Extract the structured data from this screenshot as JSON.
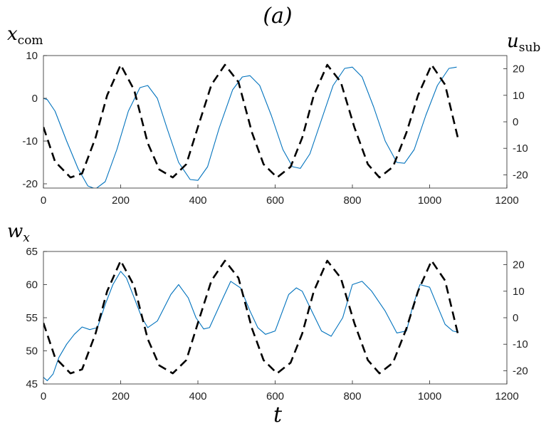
{
  "figure_label": "(a)",
  "xlabel": "t",
  "chart_data": [
    {
      "type": "line",
      "left_axis": {
        "label_main": "x",
        "label_sub": "com",
        "ylim": [
          -21,
          10
        ],
        "ticks": [
          -20,
          -10,
          0,
          10
        ]
      },
      "right_axis": {
        "label_main": "u",
        "label_sub": "sub",
        "ylim": [
          -25,
          25
        ],
        "ticks": [
          -20,
          -10,
          0,
          10,
          20
        ]
      },
      "xlim": [
        0,
        1200
      ],
      "xticks": [
        0,
        200,
        400,
        600,
        800,
        1000,
        1200
      ],
      "series": [
        {
          "axis": "left",
          "style": "solid",
          "color": "#0072BD",
          "x": [
            0,
            10,
            30,
            60,
            90,
            115,
            135,
            160,
            190,
            220,
            250,
            270,
            295,
            320,
            350,
            380,
            400,
            425,
            455,
            490,
            515,
            535,
            560,
            590,
            620,
            645,
            665,
            690,
            720,
            750,
            780,
            800,
            825,
            855,
            885,
            915,
            935,
            960,
            990,
            1020,
            1050,
            1070
          ],
          "y": [
            0,
            -0.3,
            -3,
            -10,
            -16.5,
            -20.5,
            -21.2,
            -19.5,
            -12,
            -3,
            2.5,
            3,
            0,
            -7,
            -15,
            -19,
            -19.2,
            -16,
            -7,
            2,
            5,
            5.3,
            3,
            -4,
            -12,
            -16,
            -16.4,
            -13,
            -5,
            3,
            7,
            7.3,
            5,
            -2,
            -10,
            -15,
            -15.2,
            -12,
            -4,
            3,
            7,
            7.3
          ]
        },
        {
          "axis": "right",
          "style": "dashed",
          "color": "#000000",
          "x": [
            0,
            30,
            70,
            100,
            135,
            165,
            200,
            235,
            270,
            300,
            335,
            370,
            400,
            435,
            470,
            505,
            540,
            570,
            605,
            640,
            670,
            700,
            735,
            770,
            805,
            840,
            870,
            905,
            940,
            970,
            1005,
            1040,
            1073
          ],
          "y": [
            -2,
            -15,
            -21,
            -19.5,
            -6,
            10,
            21.5,
            12,
            -8,
            -18,
            -21,
            -16,
            -2,
            14,
            21.5,
            15,
            -4,
            -16,
            -21,
            -17,
            -6,
            10,
            21.5,
            15,
            -2,
            -16,
            -21,
            -17,
            -4,
            10,
            21.5,
            14,
            -6
          ]
        }
      ]
    },
    {
      "type": "line",
      "left_axis": {
        "label_main": "w",
        "label_sub": "x",
        "ylim": [
          45,
          65
        ],
        "ticks": [
          45,
          50,
          55,
          60,
          65
        ]
      },
      "right_axis": {
        "ylim": [
          -25,
          25
        ],
        "ticks": [
          -20,
          -10,
          0,
          10,
          20
        ]
      },
      "xlim": [
        0,
        1200
      ],
      "xticks": [
        0,
        200,
        400,
        600,
        800,
        1000,
        1200
      ],
      "series": [
        {
          "axis": "left",
          "style": "solid",
          "color": "#0072BD",
          "x": [
            0,
            10,
            25,
            40,
            60,
            80,
            100,
            120,
            140,
            160,
            180,
            200,
            215,
            235,
            255,
            270,
            295,
            330,
            350,
            375,
            395,
            415,
            430,
            465,
            485,
            510,
            535,
            555,
            575,
            600,
            635,
            655,
            670,
            695,
            720,
            745,
            775,
            800,
            825,
            850,
            885,
            915,
            940,
            955,
            975,
            1000,
            1015,
            1040,
            1060,
            1075
          ],
          "y": [
            46,
            45.5,
            46.5,
            49,
            51,
            52.5,
            53.6,
            53.2,
            53.5,
            57,
            60,
            62,
            61,
            58,
            55,
            53.5,
            54.5,
            58.5,
            60,
            58,
            55,
            53.3,
            53.5,
            58,
            60.5,
            59.5,
            56,
            53.5,
            52.5,
            53,
            58.5,
            59.5,
            59,
            56,
            53,
            52.2,
            55,
            60,
            60.5,
            59,
            56,
            52.7,
            53,
            56.5,
            60,
            59.6,
            57.5,
            54,
            53,
            52.8
          ]
        },
        {
          "axis": "right",
          "style": "dashed",
          "color": "#000000",
          "x": [
            0,
            30,
            70,
            100,
            135,
            165,
            200,
            235,
            270,
            300,
            335,
            370,
            400,
            435,
            470,
            505,
            540,
            570,
            605,
            640,
            670,
            700,
            735,
            770,
            805,
            840,
            870,
            905,
            940,
            970,
            1005,
            1040,
            1073
          ],
          "y": [
            -2,
            -15,
            -21,
            -19.5,
            -6,
            10,
            21.5,
            12,
            -8,
            -18,
            -21,
            -16,
            -2,
            14,
            21.5,
            15,
            -4,
            -16,
            -21,
            -17,
            -6,
            10,
            21.5,
            15,
            -2,
            -16,
            -21,
            -17,
            -4,
            10,
            21.5,
            14,
            -6
          ]
        }
      ]
    }
  ]
}
